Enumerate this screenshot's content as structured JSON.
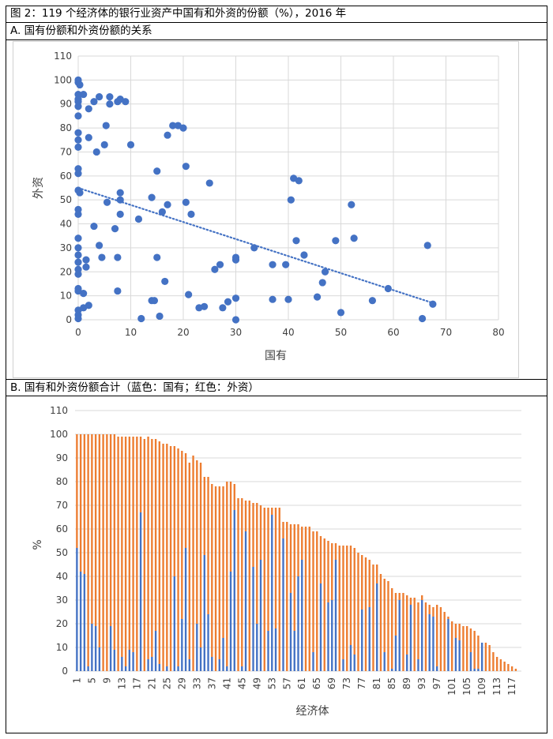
{
  "figure_title": "图 2：119 个经济体的银行业资产中国有和外资的份额（%），2016 年",
  "colors": {
    "state": "#4472C4",
    "foreign": "#ED7D31",
    "grid": "#D9D9D9",
    "axis": "#BFBFBF"
  },
  "chart_data": [
    {
      "id": "A",
      "panel_label": "A. 国有份额和外资份额的关系",
      "type": "scatter",
      "xlabel": "国有",
      "ylabel": "外资",
      "xlim": [
        0,
        80
      ],
      "ylim": [
        0,
        110
      ],
      "xticks": [
        "0",
        "10",
        "20",
        "30",
        "40",
        "50",
        "60",
        "70",
        "80"
      ],
      "yticks": [
        "0",
        "10",
        "20",
        "30",
        "40",
        "50",
        "60",
        "70",
        "80",
        "90",
        "100",
        "110"
      ],
      "trendline": {
        "style": "dotted",
        "x": [
          0,
          67.5
        ],
        "y": [
          55,
          7
        ]
      },
      "points": [
        [
          0,
          100
        ],
        [
          0,
          99
        ],
        [
          0.3,
          98
        ],
        [
          0,
          94
        ],
        [
          0,
          92
        ],
        [
          0,
          91
        ],
        [
          0,
          89
        ],
        [
          0,
          85
        ],
        [
          0,
          78
        ],
        [
          0,
          75
        ],
        [
          0,
          72
        ],
        [
          0,
          63
        ],
        [
          0,
          61
        ],
        [
          0,
          54
        ],
        [
          0,
          46
        ],
        [
          0,
          44
        ],
        [
          0,
          34
        ],
        [
          0,
          30
        ],
        [
          0,
          27
        ],
        [
          0,
          24
        ],
        [
          0,
          21
        ],
        [
          0,
          19
        ],
        [
          0,
          13
        ],
        [
          0,
          12
        ],
        [
          0,
          4
        ],
        [
          0,
          2
        ],
        [
          0,
          0.5
        ],
        [
          0.3,
          53
        ],
        [
          1,
          94
        ],
        [
          1,
          11
        ],
        [
          1,
          5
        ],
        [
          1.5,
          25
        ],
        [
          1.5,
          22
        ],
        [
          2,
          88
        ],
        [
          2,
          76
        ],
        [
          2,
          6
        ],
        [
          3,
          91
        ],
        [
          3,
          39
        ],
        [
          3.5,
          70
        ],
        [
          4,
          93
        ],
        [
          4,
          31
        ],
        [
          4.5,
          26
        ],
        [
          5,
          73
        ],
        [
          5.3,
          81
        ],
        [
          5.5,
          49
        ],
        [
          6,
          93
        ],
        [
          6,
          90
        ],
        [
          7,
          38
        ],
        [
          7.5,
          91
        ],
        [
          7.5,
          26
        ],
        [
          7.5,
          12
        ],
        [
          8,
          92
        ],
        [
          8,
          53
        ],
        [
          8,
          50
        ],
        [
          8,
          44
        ],
        [
          9,
          91
        ],
        [
          10,
          73
        ],
        [
          11.5,
          42
        ],
        [
          12,
          0.5
        ],
        [
          14,
          51
        ],
        [
          14,
          8
        ],
        [
          14.5,
          8
        ],
        [
          15,
          62
        ],
        [
          15,
          26
        ],
        [
          15.5,
          1.5
        ],
        [
          16,
          45
        ],
        [
          16.5,
          16
        ],
        [
          17,
          77
        ],
        [
          17,
          48
        ],
        [
          18,
          81
        ],
        [
          19,
          81
        ],
        [
          20,
          80
        ],
        [
          20.5,
          49
        ],
        [
          20.5,
          64
        ],
        [
          21,
          10.5
        ],
        [
          21.5,
          44
        ],
        [
          23,
          5
        ],
        [
          24,
          5.5
        ],
        [
          25,
          57
        ],
        [
          26,
          21
        ],
        [
          27,
          23
        ],
        [
          27.5,
          5
        ],
        [
          28.5,
          7.5
        ],
        [
          30,
          25
        ],
        [
          30,
          26
        ],
        [
          30,
          9
        ],
        [
          30,
          0
        ],
        [
          33.5,
          30
        ],
        [
          37,
          23
        ],
        [
          37,
          8.5
        ],
        [
          39.5,
          23
        ],
        [
          40,
          8.5
        ],
        [
          40.5,
          50
        ],
        [
          41,
          59
        ],
        [
          41.5,
          33
        ],
        [
          42,
          58
        ],
        [
          43,
          27
        ],
        [
          45.5,
          9.5
        ],
        [
          46.5,
          15.5
        ],
        [
          47,
          20
        ],
        [
          49,
          33
        ],
        [
          50,
          3
        ],
        [
          52,
          48
        ],
        [
          52.5,
          34
        ],
        [
          56,
          8
        ],
        [
          59,
          13
        ],
        [
          65.5,
          0.5
        ],
        [
          66.5,
          31
        ],
        [
          67.5,
          6.5
        ]
      ]
    },
    {
      "id": "B",
      "panel_label": "B. 国有和外资份额合计（蓝色：国有；红色：外资）",
      "type": "bar",
      "stacked": true,
      "xlabel": "经济体",
      "ylabel": "%",
      "ylim": [
        0,
        110
      ],
      "yticks": [
        "0",
        "10",
        "20",
        "30",
        "40",
        "50",
        "60",
        "70",
        "80",
        "90",
        "100",
        "110"
      ],
      "categories": [
        "1",
        "2",
        "3",
        "4",
        "5",
        "6",
        "7",
        "8",
        "9",
        "10",
        "11",
        "12",
        "13",
        "14",
        "15",
        "16",
        "17",
        "18",
        "19",
        "20",
        "21",
        "22",
        "23",
        "24",
        "25",
        "26",
        "27",
        "28",
        "29",
        "30",
        "31",
        "32",
        "33",
        "34",
        "35",
        "36",
        "37",
        "38",
        "39",
        "40",
        "41",
        "42",
        "43",
        "44",
        "45",
        "46",
        "47",
        "48",
        "49",
        "50",
        "51",
        "52",
        "53",
        "54",
        "55",
        "56",
        "57",
        "58",
        "59",
        "60",
        "61",
        "62",
        "63",
        "64",
        "65",
        "66",
        "67",
        "68",
        "69",
        "70",
        "71",
        "72",
        "73",
        "74",
        "75",
        "76",
        "77",
        "78",
        "79",
        "80",
        "81",
        "82",
        "83",
        "84",
        "85",
        "86",
        "87",
        "88",
        "89",
        "90",
        "91",
        "92",
        "93",
        "94",
        "95",
        "96",
        "97",
        "98",
        "99",
        "100",
        "101",
        "102",
        "103",
        "104",
        "105",
        "106",
        "107",
        "108",
        "109",
        "110",
        "111",
        "112",
        "113",
        "114",
        "115",
        "116",
        "117",
        "118",
        "119"
      ],
      "shown_tick_labels": [
        "1",
        "5",
        "9",
        "13",
        "17",
        "21",
        "25",
        "29",
        "33",
        "37",
        "41",
        "45",
        "49",
        "53",
        "57",
        "61",
        "65",
        "69",
        "73",
        "77",
        "81",
        "85",
        "89",
        "93",
        "97",
        "101",
        "105",
        "109",
        "113",
        "117"
      ],
      "series": [
        {
          "name": "国有",
          "values": [
            52,
            42,
            41,
            2,
            20,
            19,
            10,
            0,
            0,
            19,
            9,
            0,
            6,
            2,
            9,
            8,
            0,
            67,
            0,
            5,
            6,
            17,
            3,
            0,
            2,
            0,
            40,
            2,
            22,
            52,
            5,
            0,
            20,
            10,
            49,
            24,
            6,
            0,
            5,
            14,
            2,
            42,
            68,
            0,
            2,
            59,
            0,
            44,
            20,
            47,
            0,
            17,
            66,
            18,
            0,
            56,
            0,
            33,
            17,
            40,
            47,
            0,
            0,
            8,
            0,
            37,
            0,
            29,
            30,
            47,
            0,
            5,
            0,
            11,
            7,
            0,
            26,
            0,
            27,
            0,
            37,
            0,
            8,
            0,
            1,
            15,
            30,
            0,
            7,
            28,
            0,
            5,
            30,
            0,
            24,
            23,
            2,
            0,
            0,
            22,
            0,
            14,
            13,
            0,
            0,
            8,
            1,
            1,
            12,
            0,
            0,
            0,
            0,
            0,
            0,
            0,
            0,
            0,
            0
          ]
        },
        {
          "name": "外资",
          "values": [
            48,
            58,
            59,
            98,
            80,
            81,
            90,
            100,
            100,
            81,
            91,
            99,
            93,
            97,
            90,
            91,
            99,
            32,
            98,
            94,
            92,
            81,
            94,
            96,
            94,
            95,
            55,
            92,
            71,
            40,
            83,
            91,
            69,
            78,
            33,
            58,
            73,
            78,
            73,
            64,
            78,
            38,
            11,
            73,
            71,
            13,
            72,
            27,
            51,
            23,
            69,
            52,
            3,
            51,
            69,
            7,
            63,
            29,
            45,
            22,
            14,
            61,
            61,
            51,
            59,
            20,
            56,
            26,
            24,
            7,
            53,
            48,
            53,
            42,
            45,
            50,
            23,
            48,
            20,
            45,
            8,
            41,
            31,
            38,
            34,
            18,
            3,
            33,
            25,
            3,
            31,
            24,
            2,
            29,
            4,
            4,
            26,
            27,
            25,
            1,
            21,
            6,
            7,
            19,
            19,
            10,
            16,
            14,
            0,
            12,
            11,
            8,
            6,
            5,
            4,
            3,
            2,
            1,
            0
          ]
        }
      ]
    }
  ]
}
